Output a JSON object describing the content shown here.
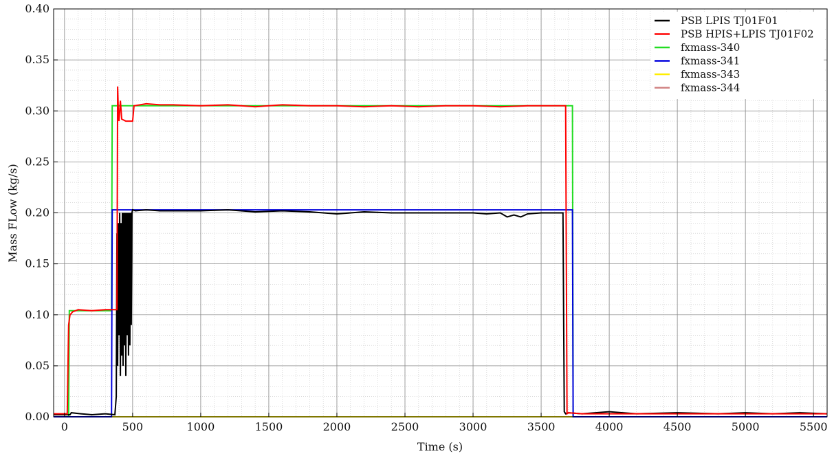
{
  "chart_data": {
    "type": "line",
    "xlabel": "Time (s)",
    "ylabel": "Mass FLow (kg/s)",
    "xlim": [
      -80,
      5600
    ],
    "ylim": [
      0,
      0.4
    ],
    "xticks": [
      0,
      500,
      1000,
      1500,
      2000,
      2500,
      3000,
      3500,
      4000,
      4500,
      5000,
      5500
    ],
    "yticks": [
      0.0,
      0.05,
      0.1,
      0.15,
      0.2,
      0.25,
      0.3,
      0.35,
      0.4
    ],
    "xtick_labels": [
      "0",
      "500",
      "1000",
      "1500",
      "2000",
      "2500",
      "3000",
      "3500",
      "4000",
      "4500",
      "5000",
      "5500"
    ],
    "ytick_labels": [
      "0.00",
      "0.05",
      "0.10",
      "0.15",
      "0.20",
      "0.25",
      "0.30",
      "0.35",
      "0.40"
    ],
    "grid": true,
    "minor_grid": true,
    "legend_position": "top-right",
    "series": [
      {
        "name": "PSB LPIS TJ01F01",
        "color": "#000000",
        "x": [
          -80,
          40,
          50,
          120,
          200,
          300,
          370,
          380,
          385,
          390,
          395,
          400,
          405,
          410,
          415,
          420,
          425,
          430,
          435,
          440,
          445,
          450,
          455,
          460,
          465,
          470,
          475,
          480,
          485,
          490,
          495,
          500,
          520,
          600,
          700,
          800,
          1000,
          1200,
          1400,
          1600,
          1800,
          1900,
          2000,
          2100,
          2200,
          2400,
          2600,
          2800,
          3000,
          3100,
          3200,
          3250,
          3300,
          3350,
          3400,
          3500,
          3600,
          3660,
          3670,
          3680,
          3700,
          3800,
          4000,
          4200,
          4500,
          4800,
          5000,
          5200,
          5400,
          5600
        ],
        "y": [
          0.002,
          0.002,
          0.004,
          0.003,
          0.002,
          0.003,
          0.002,
          0.02,
          0.18,
          0.05,
          0.19,
          0.08,
          0.2,
          0.04,
          0.19,
          0.06,
          0.2,
          0.05,
          0.2,
          0.07,
          0.2,
          0.04,
          0.2,
          0.08,
          0.2,
          0.06,
          0.2,
          0.07,
          0.2,
          0.09,
          0.2,
          0.203,
          0.202,
          0.203,
          0.202,
          0.202,
          0.202,
          0.203,
          0.201,
          0.202,
          0.201,
          0.2,
          0.199,
          0.2,
          0.201,
          0.2,
          0.2,
          0.2,
          0.2,
          0.199,
          0.2,
          0.196,
          0.198,
          0.196,
          0.199,
          0.2,
          0.2,
          0.2,
          0.005,
          0.003,
          0.004,
          0.003,
          0.005,
          0.003,
          0.004,
          0.003,
          0.004,
          0.003,
          0.004,
          0.003
        ]
      },
      {
        "name": "PSB HPIS+LPIS TJ01F02",
        "color": "#ff0000",
        "x": [
          -80,
          20,
          30,
          40,
          60,
          100,
          200,
          300,
          385,
          390,
          395,
          400,
          410,
          420,
          450,
          470,
          500,
          510,
          600,
          700,
          800,
          1000,
          1200,
          1400,
          1500,
          1600,
          1800,
          2000,
          2200,
          2400,
          2600,
          2800,
          3000,
          3200,
          3400,
          3600,
          3680,
          3690,
          3700,
          3800,
          4000,
          4200,
          4500,
          4800,
          5000,
          5200,
          5400,
          5600
        ],
        "y": [
          0.003,
          0.003,
          0.09,
          0.1,
          0.103,
          0.105,
          0.104,
          0.105,
          0.105,
          0.324,
          0.3,
          0.29,
          0.31,
          0.292,
          0.29,
          0.29,
          0.29,
          0.305,
          0.307,
          0.306,
          0.306,
          0.305,
          0.306,
          0.304,
          0.305,
          0.306,
          0.305,
          0.305,
          0.304,
          0.305,
          0.304,
          0.305,
          0.305,
          0.304,
          0.305,
          0.305,
          0.305,
          0.003,
          0.004,
          0.003,
          0.003,
          0.003,
          0.003,
          0.003,
          0.003,
          0.003,
          0.003,
          0.003
        ]
      },
      {
        "name": "fxmass-340",
        "color": "#22dd22",
        "x": [
          -80,
          30,
          35,
          345,
          350,
          3730,
          3735,
          5600
        ],
        "y": [
          0,
          0,
          0.104,
          0.104,
          0.305,
          0.305,
          0,
          0
        ]
      },
      {
        "name": "fxmass-341",
        "color": "#0000dd",
        "x": [
          -80,
          345,
          350,
          3730,
          3735,
          5600
        ],
        "y": [
          0,
          0,
          0.203,
          0.203,
          0,
          0
        ]
      },
      {
        "name": "fxmass-343",
        "color": "#ffee00",
        "x": [
          -80,
          5600
        ],
        "y": [
          0,
          0
        ]
      },
      {
        "name": "fxmass-344",
        "color": "#d08080",
        "x": [
          -80,
          5600
        ],
        "y": [
          0,
          0
        ]
      }
    ]
  }
}
